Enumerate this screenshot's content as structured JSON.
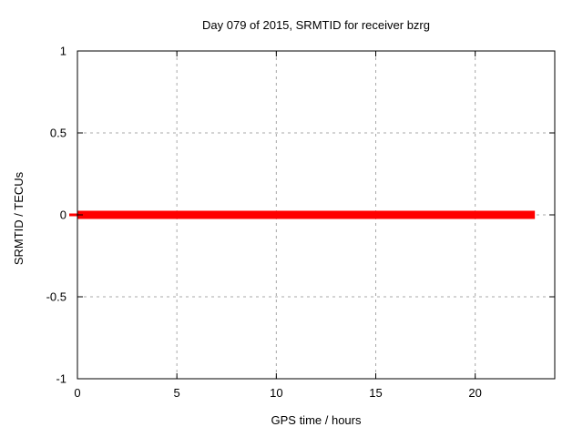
{
  "figure": {
    "background": "#ffffff",
    "border_color": "#000000",
    "grid_color": "#a8a8a8",
    "text_color": "#000000"
  },
  "chart_data": {
    "type": "line",
    "title": "Day 079 of 2015, SRMTID for receiver bzrg",
    "xlabel": "GPS time / hours",
    "ylabel": "SRMTID / TECUs",
    "xlim": [
      0,
      24
    ],
    "ylim": [
      -1,
      1
    ],
    "xticks": [
      0,
      5,
      10,
      15,
      20
    ],
    "yticks": [
      -1,
      -0.5,
      0,
      0.5,
      1
    ],
    "grid": true,
    "grid_style": "dotted",
    "legend": "none",
    "series": [
      {
        "name": "SRMTID",
        "color": "#ff0000",
        "line_width": 9,
        "x": [
          0,
          23
        ],
        "y": [
          0,
          0
        ]
      }
    ]
  }
}
